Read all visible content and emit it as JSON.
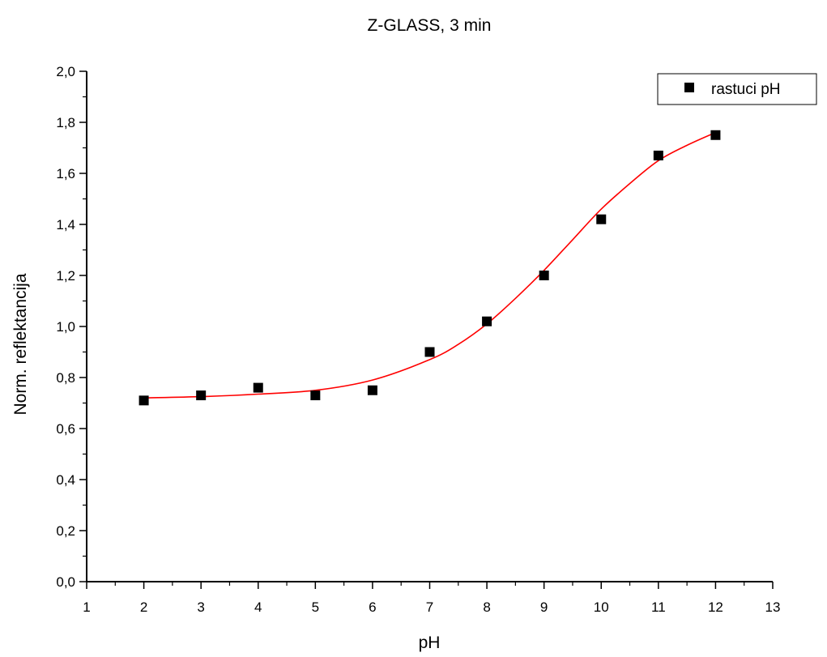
{
  "chart_data": {
    "type": "scatter",
    "title": "Z-GLASS, 3 min",
    "xlabel": "pH",
    "ylabel": "Norm. reflektancija",
    "xlim": [
      1,
      13
    ],
    "ylim": [
      0.0,
      2.0
    ],
    "x_ticks": [
      "1",
      "2",
      "3",
      "4",
      "5",
      "6",
      "7",
      "8",
      "9",
      "10",
      "11",
      "12",
      "13"
    ],
    "y_ticks": [
      "0,0",
      "0,2",
      "0,4",
      "0,6",
      "0,8",
      "1,0",
      "1,2",
      "1,4",
      "1,6",
      "1,8",
      "2,0"
    ],
    "grid": false,
    "legend_position": "top-right",
    "series": [
      {
        "name": "rastuci pH",
        "marker": "square",
        "color": "#000000",
        "x": [
          2,
          3,
          4,
          5,
          6,
          7,
          8,
          9,
          10,
          11,
          12
        ],
        "y": [
          0.71,
          0.73,
          0.76,
          0.73,
          0.75,
          0.9,
          1.02,
          1.2,
          1.42,
          1.67,
          1.75
        ]
      }
    ],
    "fit_curve": {
      "color": "#ff0000",
      "x": [
        2,
        3,
        4,
        5,
        6,
        7,
        7.5,
        8,
        8.5,
        9,
        9.5,
        10,
        10.5,
        11,
        11.5,
        12
      ],
      "y": [
        0.72,
        0.725,
        0.735,
        0.75,
        0.79,
        0.87,
        0.93,
        1.01,
        1.11,
        1.22,
        1.34,
        1.46,
        1.56,
        1.65,
        1.71,
        1.76
      ]
    }
  }
}
